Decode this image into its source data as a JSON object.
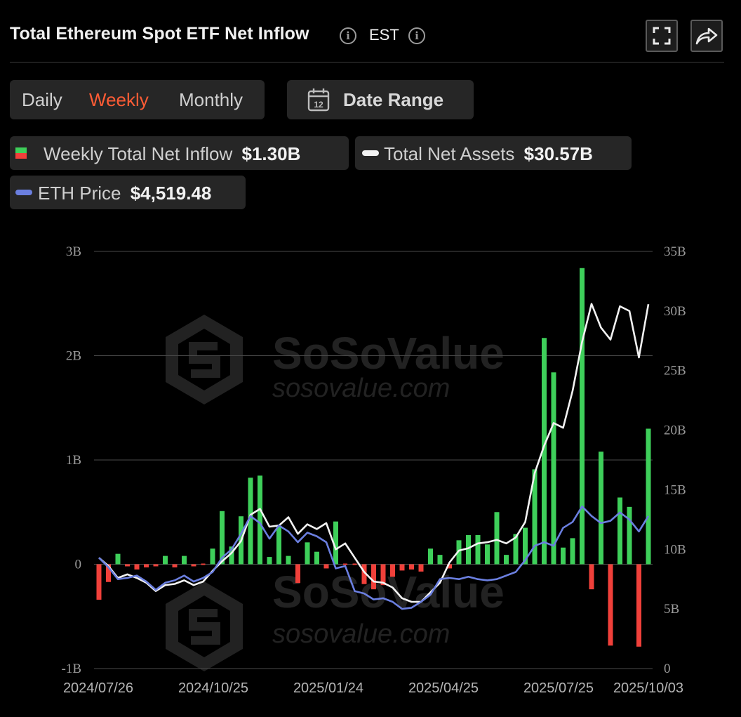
{
  "header": {
    "title": "Total Ethereum Spot ETF Net Inflow",
    "timezone": "EST"
  },
  "tabs": [
    {
      "label": "Daily",
      "active": false
    },
    {
      "label": "Weekly",
      "active": true
    },
    {
      "label": "Monthly",
      "active": false
    }
  ],
  "date_range": {
    "label": "Date Range",
    "calendar_day": "12"
  },
  "legend": {
    "inflow": {
      "label": "Weekly Total Net Inflow",
      "value": "$1.30B"
    },
    "assets": {
      "label": "Total Net Assets",
      "value": "$30.57B"
    },
    "price": {
      "label": "ETH Price",
      "value": "$4,519.48"
    }
  },
  "watermark": {
    "brand": "SoSoValue",
    "url": "sosovalue.com"
  },
  "colors": {
    "positive": "#3ecf5a",
    "negative": "#f0403a",
    "assets_line": "#f2f2f2",
    "price_line": "#6b7fe0",
    "accent": "#ff5c35"
  },
  "chart_data": {
    "type": "bar",
    "x_tick_labels": [
      "2024/07/26",
      "2024/10/25",
      "2025/01/24",
      "2025/04/25",
      "2025/07/25",
      "2025/10/03"
    ],
    "left_axis": {
      "ticks": [
        "3B",
        "2B",
        "1B",
        "0",
        "-1B"
      ],
      "min": -1,
      "max": 3,
      "unit": "B"
    },
    "right_axis": {
      "ticks": [
        "35B",
        "30B",
        "25B",
        "20B",
        "15B",
        "10B",
        "5B",
        "0"
      ],
      "min": 0,
      "max": 35,
      "unit": "B"
    },
    "grid": true,
    "series": [
      {
        "name": "Weekly Total Net Inflow",
        "type": "bar",
        "axis": "left",
        "values": [
          -0.34,
          -0.17,
          0.1,
          -0.02,
          -0.05,
          -0.03,
          -0.02,
          0.08,
          -0.03,
          0.08,
          -0.02,
          0.0,
          0.15,
          0.51,
          0.17,
          0.46,
          0.83,
          0.85,
          0.07,
          0.37,
          0.08,
          -0.18,
          0.21,
          0.12,
          -0.04,
          0.41,
          -0.01,
          -0.01,
          -0.19,
          -0.24,
          -0.2,
          -0.12,
          -0.06,
          -0.05,
          -0.07,
          0.15,
          0.09,
          -0.04,
          0.23,
          0.28,
          0.28,
          0.19,
          0.5,
          0.09,
          0.29,
          0.35,
          0.91,
          2.17,
          1.84,
          0.16,
          0.25,
          2.84,
          -0.24,
          1.08,
          -0.78,
          0.64,
          0.55,
          -0.79,
          1.3
        ]
      },
      {
        "name": "Total Net Assets",
        "type": "line",
        "axis": "right",
        "values": [
          9.3,
          8.6,
          7.6,
          7.9,
          7.6,
          7.2,
          6.5,
          7.0,
          7.1,
          7.4,
          7.0,
          7.3,
          8.2,
          9.0,
          9.7,
          10.7,
          12.9,
          13.4,
          11.9,
          12.0,
          12.7,
          11.3,
          12.1,
          11.7,
          12.2,
          10.0,
          10.5,
          9.3,
          8.1,
          7.3,
          7.2,
          6.8,
          5.9,
          5.6,
          5.6,
          6.4,
          7.2,
          8.9,
          9.9,
          10.1,
          10.5,
          10.6,
          10.8,
          10.5,
          11.0,
          12.3,
          16.4,
          18.7,
          20.6,
          20.2,
          23.3,
          27.4,
          30.6,
          28.6,
          27.6,
          30.4,
          30.0,
          26.1,
          30.57
        ]
      },
      {
        "name": "ETH Price",
        "type": "line",
        "axis": "right",
        "values": [
          9.3,
          8.5,
          7.5,
          7.6,
          7.8,
          7.3,
          6.6,
          7.2,
          7.4,
          7.8,
          7.3,
          7.6,
          8.1,
          9.3,
          10.0,
          11.3,
          12.8,
          12.2,
          10.9,
          12.0,
          11.5,
          10.6,
          11.4,
          11.1,
          10.6,
          8.4,
          8.6,
          6.5,
          6.3,
          5.8,
          5.9,
          5.6,
          5.0,
          5.1,
          5.6,
          6.2,
          7.5,
          7.6,
          7.5,
          7.7,
          7.5,
          7.4,
          7.5,
          7.8,
          8.1,
          9.1,
          10.3,
          10.6,
          10.3,
          11.8,
          12.3,
          13.6,
          12.8,
          12.2,
          12.4,
          13.1,
          12.5,
          11.5,
          12.8
        ]
      }
    ]
  }
}
